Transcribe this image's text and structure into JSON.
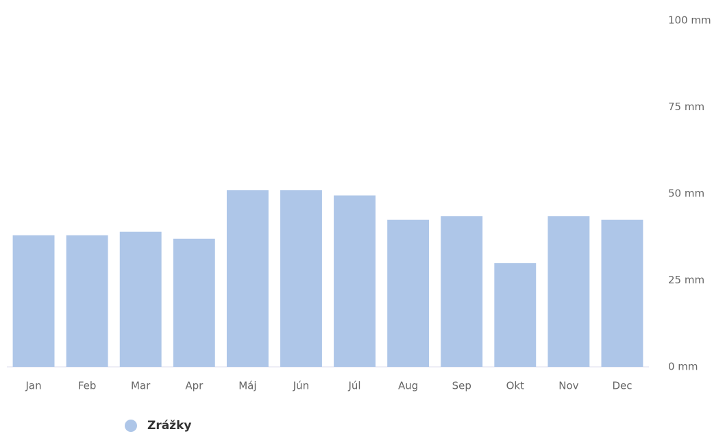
{
  "chart_data": {
    "type": "bar",
    "categories": [
      "Jan",
      "Feb",
      "Mar",
      "Apr",
      "Máj",
      "Jún",
      "Júl",
      "Aug",
      "Sep",
      "Okt",
      "Nov",
      "Dec"
    ],
    "series": [
      {
        "name": "Zrážky",
        "color": "#aec6e8",
        "values": [
          38,
          38,
          39,
          37,
          51,
          51,
          49.5,
          42.5,
          43.5,
          30,
          43.5,
          42.5
        ]
      }
    ],
    "ylim": [
      0,
      100
    ],
    "yticks": [
      {
        "value": 0,
        "label": "0 mm"
      },
      {
        "value": 25,
        "label": "25 mm"
      },
      {
        "value": 50,
        "label": "50 mm"
      },
      {
        "value": 75,
        "label": "75 mm"
      },
      {
        "value": 100,
        "label": "100 mm"
      }
    ],
    "grid": false,
    "legend": "bottom-left"
  }
}
